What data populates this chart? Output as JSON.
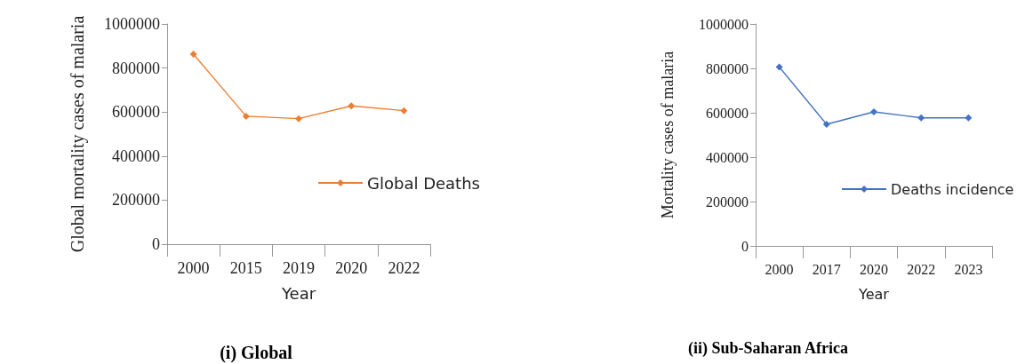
{
  "chart_data": [
    {
      "type": "line",
      "title": "(i) Global",
      "xlabel": "Year",
      "ylabel": "Global mortality cases of malaria",
      "categories": [
        "2000",
        "2015",
        "2019",
        "2020",
        "2022"
      ],
      "series": [
        {
          "name": "Global Deaths",
          "color": "#ed7d31",
          "values": [
            863000,
            581000,
            570000,
            628000,
            606000
          ]
        }
      ],
      "ylim": [
        0,
        1000000
      ],
      "yticks": [
        0,
        200000,
        400000,
        600000,
        800000,
        1000000
      ],
      "grid": false,
      "legend": "right",
      "marker": "diamond",
      "line_style": "solid"
    },
    {
      "type": "line",
      "title": "(ii) Sub-Saharan Africa",
      "xlabel": "Year",
      "ylabel": "Mortality cases of malaria",
      "categories": [
        "2000",
        "2017",
        "2020",
        "2022",
        "2023"
      ],
      "series": [
        {
          "name": "Deaths incidence",
          "color": "#4472c4",
          "values": [
            806000,
            548000,
            604000,
            577000,
            577000
          ]
        }
      ],
      "ylim": [
        0,
        1000000
      ],
      "yticks": [
        0,
        200000,
        400000,
        600000,
        800000,
        1000000
      ],
      "grid": false,
      "legend": "right",
      "marker": "diamond",
      "line_style": "solid"
    }
  ]
}
